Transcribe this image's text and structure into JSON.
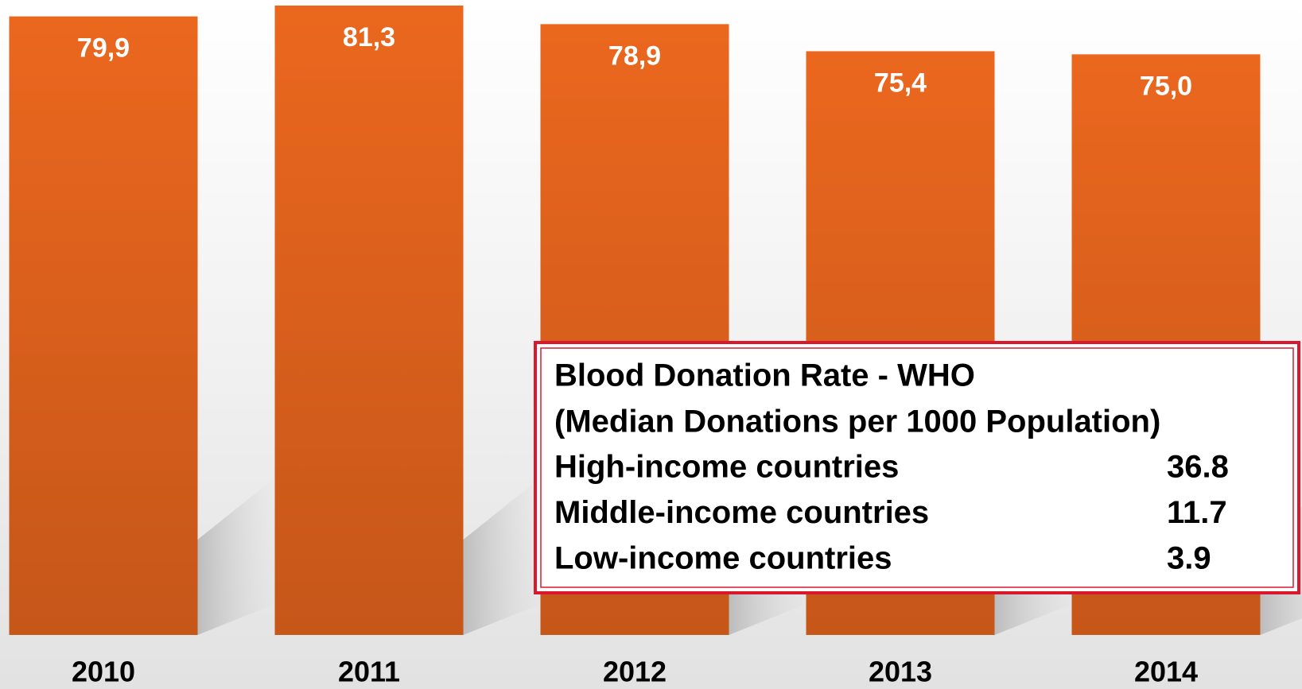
{
  "chart_data": {
    "type": "bar",
    "categories": [
      "2010",
      "2011",
      "2012",
      "2013",
      "2014"
    ],
    "values": [
      79.9,
      81.3,
      78.9,
      75.4,
      75.0
    ],
    "value_labels": [
      "79,9",
      "81,3",
      "78,9",
      "75,4",
      "75,0"
    ],
    "color": "#eb671e",
    "annotation": {
      "title": "Blood Donation Rate - WHO",
      "subtitle": "(Median Donations per 1000 Population)",
      "rows": [
        {
          "label": "High-income countries",
          "value": 36.8
        },
        {
          "label": "Middle-income countries",
          "value": 11.7
        },
        {
          "label": "Low-income countries",
          "value": 3.9
        }
      ]
    }
  }
}
